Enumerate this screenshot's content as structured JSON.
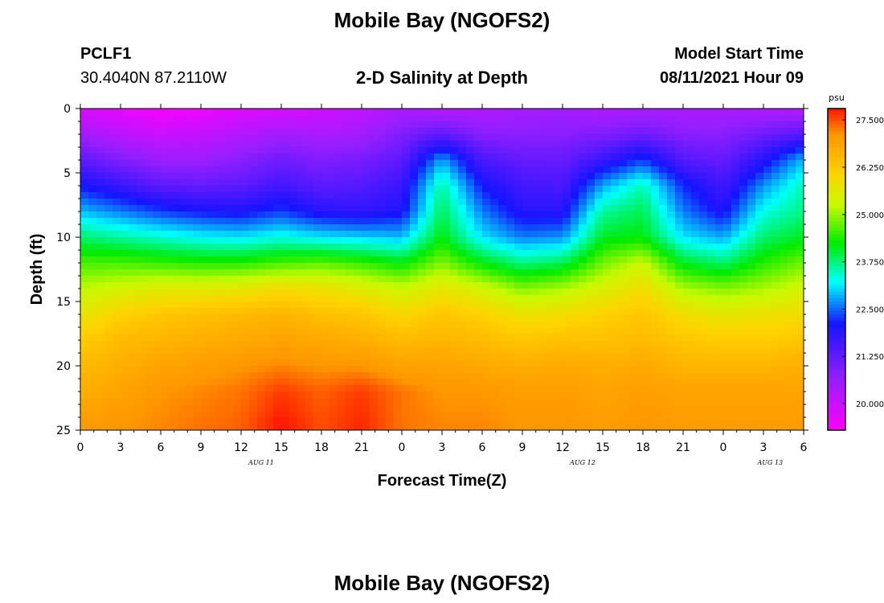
{
  "header": {
    "title": "Mobile Bay (NGOFS2)",
    "station_id": "PCLF1",
    "station_coords": "30.4040N  87.2110W",
    "plot_title": "2-D Salinity at Depth",
    "model_start_label": "Model Start Time",
    "model_start_value": "08/11/2021 Hour 09"
  },
  "footer": {
    "title": "Mobile Bay (NGOFS2)"
  },
  "colorbar": {
    "unit": "psu",
    "ticks": [
      "27.500",
      "26.250",
      "25.000",
      "23.750",
      "22.500",
      "21.250",
      "20.000"
    ],
    "min": 19.3,
    "max": 27.8
  },
  "chart_data": {
    "type": "heatmap",
    "title": "2-D Salinity at Depth",
    "xlabel": "Forecast Time(Z)",
    "ylabel": "Depth (ft)",
    "x_tick_labels": [
      "0",
      "3",
      "6",
      "9",
      "12",
      "15",
      "18",
      "21",
      "0",
      "3",
      "6",
      "9",
      "12",
      "15",
      "18",
      "21",
      "0",
      "3",
      "6"
    ],
    "date_labels": [
      "AUG  11",
      "AUG  12",
      "AUG  13"
    ],
    "y_tick_labels": [
      "0",
      "5",
      "10",
      "15",
      "20",
      "25"
    ],
    "ylim": [
      0,
      25
    ],
    "xlim_hours": [
      0,
      54
    ],
    "value_unit": "psu",
    "profile_depths_ft": [
      0,
      2,
      4,
      6,
      8,
      10,
      12,
      14,
      16,
      18,
      20,
      22,
      24.5
    ],
    "time_hours": [
      0,
      3,
      6,
      9,
      12,
      15,
      18,
      21,
      24,
      27,
      30,
      33,
      36,
      39,
      42,
      45,
      48,
      51,
      54
    ],
    "salinity_psu": [
      [
        19.8,
        20.5,
        21.3,
        22.1,
        22.9,
        23.8,
        24.6,
        25.2,
        25.7,
        26.2,
        26.5,
        26.7,
        27.0
      ],
      [
        19.6,
        20.2,
        20.9,
        21.7,
        22.6,
        23.6,
        24.6,
        25.4,
        26.1,
        26.5,
        26.7,
        26.9,
        27.1
      ],
      [
        19.4,
        20.0,
        20.6,
        21.3,
        22.3,
        23.4,
        24.5,
        25.6,
        26.3,
        26.6,
        26.9,
        27.1,
        27.2
      ],
      [
        19.5,
        20.1,
        20.6,
        21.2,
        22.1,
        23.2,
        24.4,
        25.6,
        26.4,
        26.7,
        27.0,
        27.2,
        27.3
      ],
      [
        19.7,
        20.3,
        20.8,
        21.3,
        22.0,
        23.1,
        24.4,
        25.7,
        26.5,
        26.8,
        27.1,
        27.3,
        27.4
      ],
      [
        19.8,
        20.5,
        21.1,
        21.6,
        22.3,
        23.3,
        24.6,
        25.9,
        26.6,
        26.9,
        27.2,
        27.6,
        27.8
      ],
      [
        19.9,
        20.4,
        20.9,
        21.3,
        21.9,
        23.1,
        24.7,
        25.8,
        26.4,
        26.8,
        27.1,
        27.4,
        27.5
      ],
      [
        20.1,
        20.5,
        21.0,
        21.4,
        21.8,
        23.0,
        24.5,
        25.6,
        26.3,
        26.7,
        27.1,
        27.6,
        27.7
      ],
      [
        20.4,
        20.9,
        21.3,
        21.7,
        22.0,
        22.9,
        24.2,
        25.3,
        26.0,
        26.5,
        26.9,
        27.3,
        27.3
      ],
      [
        20.2,
        21.3,
        22.8,
        23.6,
        23.9,
        24.2,
        24.9,
        25.7,
        26.3,
        26.6,
        26.9,
        27.1,
        27.2
      ],
      [
        20.3,
        20.8,
        21.5,
        22.1,
        22.6,
        23.1,
        24.2,
        25.4,
        26.1,
        26.5,
        26.8,
        27.1,
        27.2
      ],
      [
        20.4,
        20.8,
        21.2,
        21.6,
        21.9,
        22.6,
        23.7,
        24.9,
        25.8,
        26.3,
        26.7,
        27.0,
        27.1
      ],
      [
        20.5,
        20.8,
        21.2,
        21.5,
        21.9,
        22.7,
        23.9,
        25.1,
        25.9,
        26.4,
        26.8,
        27.0,
        27.1
      ],
      [
        20.3,
        20.9,
        21.7,
        22.8,
        23.6,
        24.1,
        24.8,
        25.5,
        26.1,
        26.4,
        26.7,
        26.9,
        27.0
      ],
      [
        20.4,
        21.1,
        22.3,
        23.5,
        23.9,
        24.2,
        25.3,
        25.9,
        26.3,
        26.5,
        26.8,
        27.0,
        27.1
      ],
      [
        20.4,
        20.8,
        21.4,
        22.2,
        22.6,
        23.1,
        24.1,
        25.1,
        25.9,
        26.3,
        26.6,
        26.9,
        27.0
      ],
      [
        20.4,
        20.8,
        21.2,
        21.6,
        22.0,
        22.8,
        23.8,
        24.9,
        25.7,
        26.2,
        26.6,
        26.9,
        27.0
      ],
      [
        20.3,
        21.1,
        21.9,
        22.7,
        23.3,
        23.8,
        24.4,
        25.1,
        25.8,
        26.2,
        26.6,
        26.9,
        27.0
      ],
      [
        20.2,
        21.4,
        22.9,
        23.5,
        23.7,
        24.1,
        24.8,
        25.4,
        25.9,
        26.3,
        26.7,
        26.9,
        27.0
      ]
    ]
  }
}
